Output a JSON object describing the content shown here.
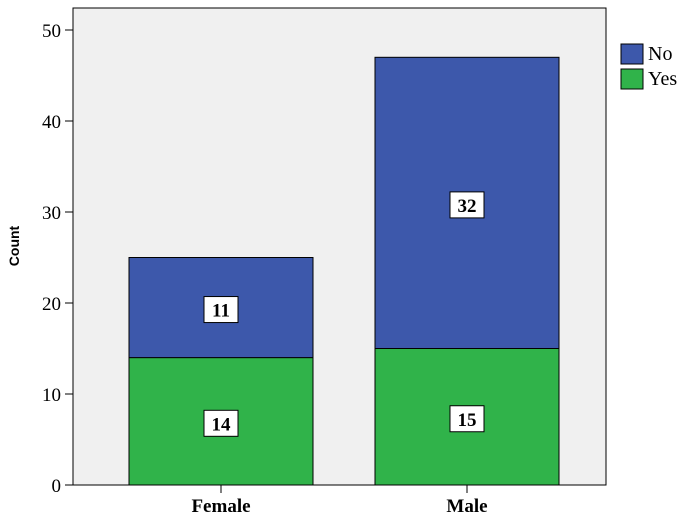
{
  "chart_data": {
    "type": "bar",
    "stacked": true,
    "categories": [
      "Female",
      "Male"
    ],
    "series": [
      {
        "name": "Yes",
        "values": [
          14,
          15
        ],
        "color": "#30b34a"
      },
      {
        "name": "No",
        "values": [
          11,
          32
        ],
        "color": "#3d58ab"
      }
    ],
    "data_labels": [
      [
        "14",
        "15"
      ],
      [
        "11",
        "32"
      ]
    ],
    "ylabel": "Count",
    "xlabel": "",
    "ylim": [
      0,
      50
    ],
    "yticks": [
      0,
      10,
      20,
      30,
      40,
      50
    ],
    "legend_order": [
      "No",
      "Yes"
    ],
    "legend_position": "right",
    "grid": false,
    "plot_background": "#f0f0f0"
  }
}
